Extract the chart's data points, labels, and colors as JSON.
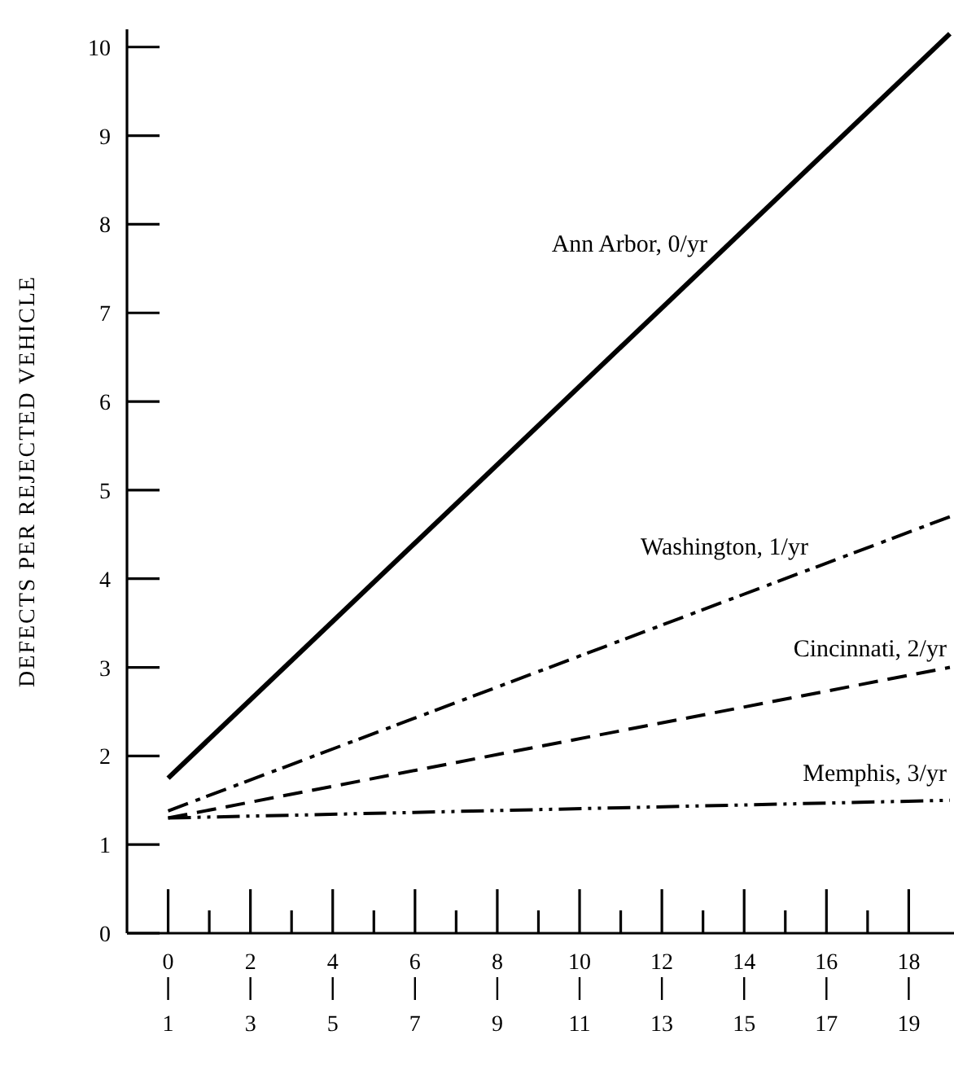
{
  "chart_data": {
    "type": "line",
    "ylabel": "DEFECTS PER REJECTED VEHICLE",
    "xlim": [
      -1,
      19.1
    ],
    "ylim": [
      0,
      10.2
    ],
    "yticks": [
      0,
      1,
      2,
      3,
      4,
      5,
      6,
      7,
      8,
      9,
      10
    ],
    "xticks": [
      0,
      {
        "value": 1,
        "label": null
      },
      2,
      {
        "value": 3,
        "label": null
      },
      4,
      {
        "value": 5,
        "label": null
      },
      6,
      {
        "value": 7,
        "label": null
      },
      8,
      {
        "value": 9,
        "label": null
      },
      10,
      {
        "value": 11,
        "label": null
      },
      12,
      {
        "value": 13,
        "label": null
      },
      14,
      {
        "value": 15,
        "label": null
      },
      16,
      {
        "value": 17,
        "label": null
      },
      18
    ],
    "x2lim": [
      0,
      20.1
    ],
    "x2ticks": [
      1,
      3,
      5,
      7,
      9,
      11,
      13,
      15,
      17,
      19
    ],
    "grid": false,
    "legend": false,
    "marker": "none",
    "x": [
      0,
      19
    ],
    "series": [
      {
        "name": "Ann Arbor, 0/yr",
        "color": "#000000",
        "values": [
          1.75,
          10.15
        ],
        "line_style": "solid"
      },
      {
        "name": "Washington, 1/yr",
        "color": "#000000",
        "values": [
          1.38,
          4.7
        ],
        "line_style": "dashdot"
      },
      {
        "name": "Cincinnati, 2/yr",
        "color": "#000000",
        "values": [
          1.3,
          3.0
        ],
        "line_style": "dashed"
      },
      {
        "name": "Memphis, 3/yr",
        "color": "#000000",
        "values": [
          1.3,
          1.5
        ],
        "line_style": "dashdotdot"
      }
    ]
  }
}
